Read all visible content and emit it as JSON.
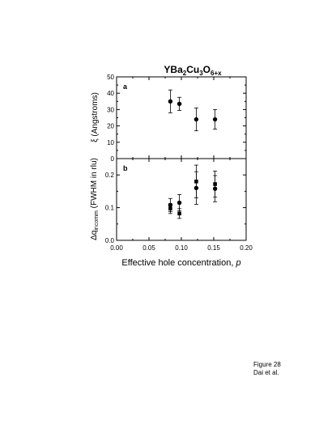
{
  "figure": {
    "title_main": "YBa",
    "title_sub1": "2",
    "title_mid": "Cu",
    "title_sub2": "3",
    "title_end": "O",
    "title_sub3": "6+x",
    "xlabel": "Effective hole concentration, ",
    "xlabel_var": "p",
    "caption_line1": "Figure 28",
    "caption_line2": "Dai et al."
  },
  "chart_data": [
    {
      "type": "scatter",
      "panel_label": "a",
      "ylabel_symbol": "ξ",
      "ylabel_text": " (Angstroms)",
      "xlim": [
        0.0,
        0.2
      ],
      "ylim": [
        0,
        50
      ],
      "yticks": [
        "0",
        "10",
        "20",
        "30",
        "40",
        "50"
      ],
      "grid": false,
      "series": [
        {
          "marker": "circle",
          "points": [
            {
              "x": 0.083,
              "y": 35,
              "err": 7
            },
            {
              "x": 0.097,
              "y": 33.5,
              "err": 4
            },
            {
              "x": 0.123,
              "y": 24,
              "err": 7
            },
            {
              "x": 0.152,
              "y": 24,
              "err": 6
            }
          ]
        }
      ]
    },
    {
      "type": "scatter",
      "panel_label": "b",
      "ylabel_main": "Δq",
      "ylabel_sub": "incomm",
      "ylabel_text": " (FWHM in rlu)",
      "xlim": [
        0.0,
        0.2
      ],
      "ylim": [
        0.0,
        0.25
      ],
      "yticks": [
        "0.0",
        "0.1",
        "0.2"
      ],
      "xticks": [
        "0.00",
        "0.05",
        "0.10",
        "0.15",
        "0.20"
      ],
      "grid": false,
      "series": [
        {
          "marker": "circle",
          "points": [
            {
              "x": 0.083,
              "y": 0.108,
              "err": 0.02
            },
            {
              "x": 0.097,
              "y": 0.115,
              "err": 0.025
            },
            {
              "x": 0.123,
              "y": 0.16,
              "err": 0.05
            },
            {
              "x": 0.152,
              "y": 0.158,
              "err": 0.04
            }
          ]
        },
        {
          "marker": "square",
          "points": [
            {
              "x": 0.083,
              "y": 0.097,
              "err": 0.015
            },
            {
              "x": 0.097,
              "y": 0.082,
              "err": 0.015
            },
            {
              "x": 0.123,
              "y": 0.18,
              "err": 0.05
            },
            {
              "x": 0.152,
              "y": 0.172,
              "err": 0.04
            }
          ]
        }
      ]
    }
  ]
}
